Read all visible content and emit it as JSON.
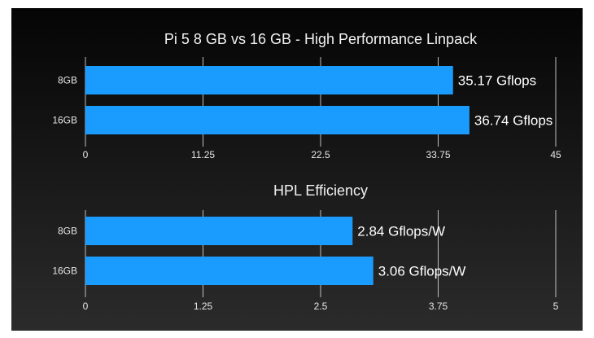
{
  "chart_data": [
    {
      "type": "bar",
      "orientation": "horizontal",
      "title": "Pi 5 8 GB vs 16 GB - High Performance Linpack",
      "categories": [
        "8GB",
        "16GB"
      ],
      "values": [
        35.17,
        36.74
      ],
      "data_labels": [
        "35.17 Gflops",
        "36.74 Gflops"
      ],
      "xlim": [
        0,
        45
      ],
      "ticks": [
        "0",
        "11.25",
        "22.5",
        "33.75",
        "45"
      ],
      "grid": true,
      "color": "#1a9cff"
    },
    {
      "type": "bar",
      "orientation": "horizontal",
      "title": "HPL Efficiency",
      "categories": [
        "8GB",
        "16GB"
      ],
      "values": [
        2.84,
        3.06
      ],
      "data_labels": [
        "2.84 Gflops/W",
        "3.06 Gflops/W"
      ],
      "xlim": [
        0,
        5
      ],
      "ticks": [
        "0",
        "1.25",
        "2.5",
        "3.75",
        "5"
      ],
      "grid": true,
      "color": "#1a9cff"
    }
  ]
}
